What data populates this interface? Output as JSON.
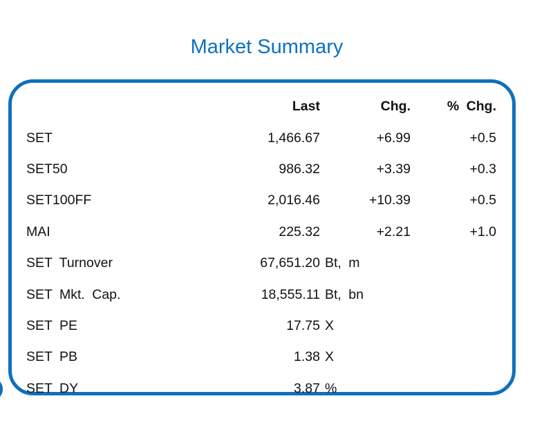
{
  "title": "Market Summary",
  "table": {
    "header": {
      "last": "Last",
      "chg": "Chg.",
      "pct_chg": "% Chg."
    },
    "rows": [
      {
        "label": "SET",
        "last": "1,466.67",
        "suffix": "",
        "chg": "+6.99",
        "pct_chg": "+0.5"
      },
      {
        "label": "SET50",
        "last": "986.32",
        "suffix": "",
        "chg": "+3.39",
        "pct_chg": "+0.3"
      },
      {
        "label": "SET100FF",
        "last": "2,016.46",
        "suffix": "",
        "chg": "+10.39",
        "pct_chg": "+0.5"
      },
      {
        "label": "MAI",
        "last": "225.32",
        "suffix": "",
        "chg": "+2.21",
        "pct_chg": "+1.0"
      },
      {
        "label": "SET Turnover",
        "last": "67,651.20",
        "suffix": "Bt, m",
        "chg": "",
        "pct_chg": ""
      },
      {
        "label": "SET Mkt. Cap.",
        "last": "18,555.11",
        "suffix": "Bt, bn",
        "chg": "",
        "pct_chg": ""
      },
      {
        "label": "SET PE",
        "last": "17.75",
        "suffix": "X",
        "chg": "",
        "pct_chg": ""
      },
      {
        "label": "SET PB",
        "last": "1.38",
        "suffix": "X",
        "chg": "",
        "pct_chg": ""
      },
      {
        "label": "SET DY",
        "last": "3.87",
        "suffix": "%",
        "chg": "",
        "pct_chg": ""
      }
    ]
  },
  "icons": {
    "left_edge_fragment": "partial-circle-logo-fragment"
  },
  "colors": {
    "accent_blue": "#0E70BD",
    "text": "#111111",
    "background": "#FFFFFF"
  }
}
